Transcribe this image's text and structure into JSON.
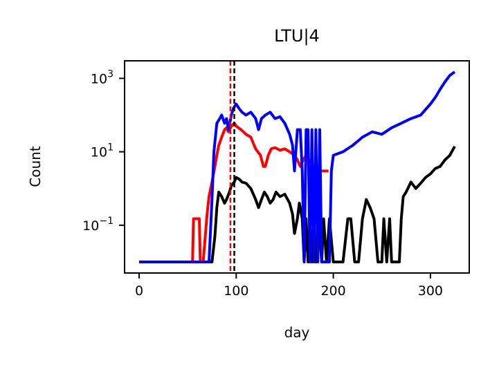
{
  "chart_data": {
    "type": "line",
    "title": "LTU|4",
    "xlabel": "day",
    "ylabel": "Count",
    "xlim": [
      -15,
      340
    ],
    "ylim": [
      0.005,
      3000
    ],
    "yscale": "log",
    "xticks": [
      0,
      100,
      200,
      300
    ],
    "xtick_labels": [
      "0",
      "100",
      "200",
      "300"
    ],
    "yticks": [
      0.1,
      10,
      1000
    ],
    "ytick_bases": [
      "10",
      "10",
      "10"
    ],
    "ytick_exponents": [
      "−1",
      "1",
      "3"
    ],
    "grid": false,
    "legend": "none",
    "vlines": [
      {
        "x": 94,
        "color": "#ff0000",
        "style": "dashed"
      },
      {
        "x": 98,
        "color": "#000000",
        "style": "dashed"
      }
    ],
    "series": [
      {
        "color": "#ff0000",
        "x": [
          0,
          55,
          56,
          62,
          63,
          64,
          66,
          70,
          72,
          75,
          78,
          80,
          82,
          85,
          88,
          90,
          92,
          95,
          98,
          100,
          105,
          110,
          115,
          120,
          125,
          128,
          130,
          133,
          136,
          140,
          145,
          150,
          155,
          160,
          163,
          166,
          169,
          172,
          175,
          180,
          185,
          190,
          195
        ],
        "y": [
          0.01,
          0.01,
          0.15,
          0.15,
          0.01,
          0.01,
          0.01,
          0.2,
          0.6,
          1.5,
          4,
          8,
          15,
          25,
          40,
          45,
          35,
          50,
          60,
          50,
          40,
          30,
          25,
          12,
          8,
          4,
          4,
          8,
          12,
          13,
          11,
          12,
          10,
          8,
          6,
          4,
          6,
          8,
          6,
          4,
          3,
          3,
          3
        ]
      },
      {
        "color": "#000000",
        "x": [
          0,
          70,
          75,
          78,
          80,
          82,
          85,
          88,
          90,
          93,
          95,
          98,
          100,
          103,
          106,
          110,
          115,
          120,
          123,
          126,
          129,
          132,
          135,
          138,
          141,
          145,
          150,
          155,
          158,
          160,
          163,
          165,
          168,
          170,
          172,
          174,
          176,
          178,
          180,
          182,
          185,
          188,
          190,
          193,
          196,
          200,
          210,
          215,
          218,
          222,
          226,
          230,
          234,
          238,
          242,
          246,
          250,
          252,
          255,
          258,
          260,
          262,
          265,
          268,
          270,
          272,
          275,
          280,
          285,
          290,
          295,
          300,
          305,
          310,
          315,
          320,
          325
        ],
        "y": [
          0.01,
          0.01,
          0.01,
          0.05,
          0.3,
          0.8,
          0.6,
          0.4,
          0.5,
          0.8,
          1.2,
          1.5,
          2,
          1.8,
          1.5,
          1.4,
          1,
          0.5,
          0.3,
          0.5,
          0.8,
          0.6,
          0.4,
          0.5,
          0.8,
          0.6,
          0.7,
          0.4,
          0.2,
          0.06,
          0.15,
          0.4,
          0.15,
          0.01,
          0.15,
          0.01,
          0.15,
          0.01,
          0.15,
          0.01,
          0.15,
          0.01,
          0.15,
          0.01,
          0.15,
          0.01,
          0.01,
          0.15,
          0.15,
          0.01,
          0.01,
          0.15,
          0.5,
          0.3,
          0.15,
          0.01,
          0.01,
          0.15,
          0.01,
          0.15,
          0.01,
          0.01,
          0.01,
          0.01,
          0.15,
          0.6,
          0.8,
          1.5,
          1,
          1.4,
          2,
          2.5,
          3.5,
          4,
          6,
          8,
          14
        ]
      },
      {
        "color": "#0000ff",
        "x": [
          0,
          72,
          75,
          77,
          80,
          83,
          85,
          88,
          90,
          92,
          95,
          97,
          100,
          103,
          106,
          110,
          115,
          120,
          123,
          126,
          130,
          135,
          140,
          145,
          150,
          155,
          158,
          160,
          163,
          166,
          168,
          170,
          172,
          174,
          176,
          178,
          180,
          182,
          184,
          186,
          188,
          190,
          192,
          194,
          196,
          198,
          200,
          210,
          220,
          230,
          240,
          250,
          260,
          270,
          280,
          290,
          300,
          305,
          310,
          315,
          320,
          325
        ],
        "y": [
          0.01,
          0.01,
          0.5,
          10,
          60,
          80,
          100,
          60,
          80,
          40,
          100,
          150,
          200,
          150,
          120,
          100,
          120,
          80,
          40,
          80,
          100,
          120,
          80,
          90,
          60,
          30,
          15,
          3,
          40,
          40,
          3,
          0.01,
          40,
          40,
          0.01,
          40,
          0.01,
          40,
          0.01,
          40,
          0.01,
          0.01,
          0.01,
          0.01,
          0.01,
          3,
          8,
          10,
          15,
          25,
          35,
          30,
          45,
          60,
          80,
          100,
          200,
          300,
          500,
          800,
          1200,
          1500
        ]
      }
    ]
  }
}
